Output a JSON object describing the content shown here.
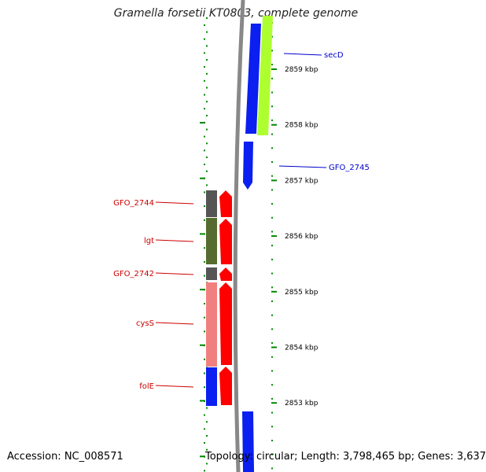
{
  "title": "Gramella forsetii KT0803, complete genome",
  "accession": "Accession: NC_008571",
  "summary": "Topology: circular; Length: 3,798,465 bp; Genes: 3,637",
  "ruler_ticks": [
    {
      "kbp": 2859,
      "label": "2859 kbp"
    },
    {
      "kbp": 2858,
      "label": "2858 kbp"
    },
    {
      "kbp": 2857,
      "label": "2857 kbp"
    },
    {
      "kbp": 2856,
      "label": "2856 kbp"
    },
    {
      "kbp": 2855,
      "label": "2855 kbp"
    },
    {
      "kbp": 2854,
      "label": "2854 kbp"
    },
    {
      "kbp": 2853,
      "label": "2853 kbp"
    }
  ],
  "genes_forward": [
    {
      "name": "secD",
      "label_color": "#0000cc"
    },
    {
      "name": "GFO_2745",
      "label_color": "#0000cc"
    }
  ],
  "genes_reverse": [
    {
      "name": "GFO_2744",
      "label_color": "#cc0000"
    },
    {
      "name": "lgt",
      "label_color": "#cc0000"
    },
    {
      "name": "GFO_2742",
      "label_color": "#cc0000"
    },
    {
      "name": "cysS",
      "label_color": "#cc0000"
    },
    {
      "name": "folE",
      "label_color": "#cc0000"
    }
  ],
  "colors": {
    "forward_strand": "#0a1ff0",
    "reverse_strand": "#ff0000",
    "backbone": "#888888",
    "tick": "#008800",
    "cog_green": "#adff2f",
    "cog_gray": "#555555",
    "cog_olive": "#556b2f",
    "cog_pink": "#f08080",
    "cog_blue": "#0a1ff0"
  }
}
